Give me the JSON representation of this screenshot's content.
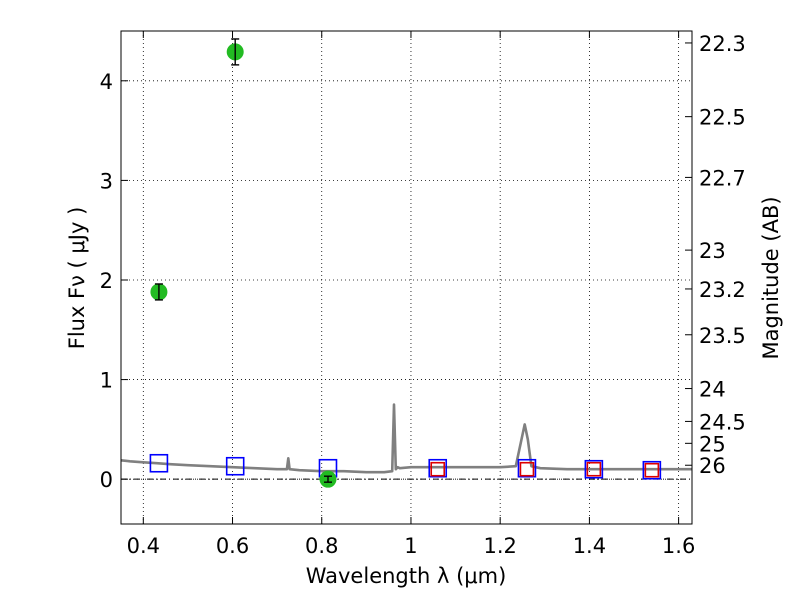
{
  "chart_data": {
    "type": "scatter",
    "xlabel": "Wavelength  λ (μm)",
    "ylabel": "Flux  Fν  ( μJy )",
    "ylabel_right": "Magnitude (AB)",
    "xlim": [
      0.35,
      1.63
    ],
    "ylim": [
      -0.45,
      4.5
    ],
    "grid": true,
    "x_ticks": [
      0.4,
      0.6,
      0.8,
      1.0,
      1.2,
      1.4,
      1.6
    ],
    "x_tick_labels": [
      "0.4",
      "0.6",
      "0.8",
      "1",
      "1.2",
      "1.4",
      "1.6"
    ],
    "y_ticks": [
      0,
      1,
      2,
      3,
      4
    ],
    "y_tick_labels": [
      "0",
      "1",
      "2",
      "3",
      "4"
    ],
    "right_ticks": [
      {
        "label": "22.3",
        "flux": 4.38
      },
      {
        "label": "22.5",
        "flux": 3.64
      },
      {
        "label": "22.7",
        "flux": 3.03
      },
      {
        "label": "23",
        "flux": 2.3
      },
      {
        "label": "23.2",
        "flux": 1.91
      },
      {
        "label": "23.5",
        "flux": 1.45
      },
      {
        "label": "24",
        "flux": 0.91
      },
      {
        "label": "24.5",
        "flux": 0.58
      },
      {
        "label": "25",
        "flux": 0.36
      },
      {
        "label": "26",
        "flux": 0.14
      }
    ],
    "series": [
      {
        "name": "observed",
        "marker": "circle",
        "color": "#22bb22",
        "points": [
          {
            "x": 0.435,
            "y": 1.88,
            "err": 0.08
          },
          {
            "x": 0.606,
            "y": 4.29,
            "err": 0.13
          },
          {
            "x": 0.814,
            "y": 0.0,
            "err": 0.03
          }
        ]
      },
      {
        "name": "model_blue",
        "marker": "square",
        "color": "#0000ff",
        "points": [
          {
            "x": 0.435,
            "y": 0.16
          },
          {
            "x": 0.606,
            "y": 0.13
          },
          {
            "x": 0.814,
            "y": 0.11
          },
          {
            "x": 1.06,
            "y": 0.11
          },
          {
            "x": 1.26,
            "y": 0.11
          },
          {
            "x": 1.41,
            "y": 0.1
          },
          {
            "x": 1.54,
            "y": 0.09
          }
        ]
      },
      {
        "name": "model_red",
        "marker": "square",
        "color": "#dd0000",
        "points": [
          {
            "x": 1.06,
            "y": 0.1
          },
          {
            "x": 1.26,
            "y": 0.1
          },
          {
            "x": 1.41,
            "y": 0.1
          },
          {
            "x": 1.54,
            "y": 0.09
          }
        ]
      },
      {
        "name": "spectrum",
        "marker": "line",
        "color": "#808080",
        "x": [
          0.35,
          0.37,
          0.4,
          0.43,
          0.46,
          0.5,
          0.55,
          0.6,
          0.65,
          0.7,
          0.722,
          0.725,
          0.728,
          0.75,
          0.8,
          0.85,
          0.9,
          0.94,
          0.958,
          0.962,
          0.966,
          0.97,
          0.975,
          1.0,
          1.05,
          1.1,
          1.15,
          1.2,
          1.235,
          1.255,
          1.262,
          1.27,
          1.29,
          1.35,
          1.4,
          1.45,
          1.5,
          1.55,
          1.6,
          1.63
        ],
        "y": [
          0.19,
          0.18,
          0.17,
          0.16,
          0.15,
          0.14,
          0.13,
          0.12,
          0.11,
          0.1,
          0.1,
          0.21,
          0.1,
          0.09,
          0.08,
          0.08,
          0.07,
          0.07,
          0.08,
          0.75,
          0.1,
          0.12,
          0.11,
          0.12,
          0.12,
          0.12,
          0.12,
          0.12,
          0.13,
          0.55,
          0.4,
          0.13,
          0.11,
          0.1,
          0.1,
          0.1,
          0.1,
          0.1,
          0.1,
          0.1
        ]
      }
    ]
  }
}
